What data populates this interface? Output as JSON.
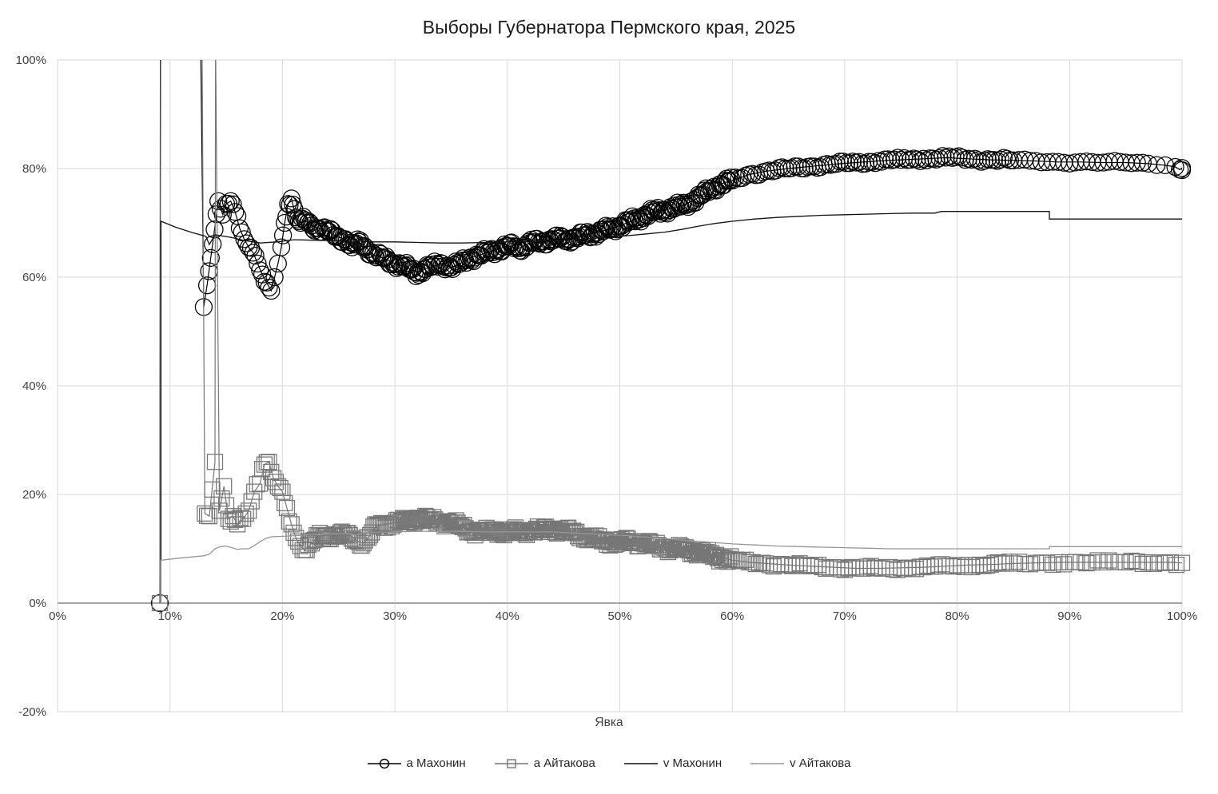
{
  "chart": {
    "title": "Выборы Губернатора Пермского края, 2025",
    "x_axis_title": "Явка"
  },
  "colors": {
    "background": "#ffffff",
    "grid": "#d9d9d9",
    "zero_axis": "#a6a6a6",
    "tick_text": "#404040",
    "title_text": "#1a1a1a",
    "series_makhonin": "#000000",
    "series_aytakova": "#767676",
    "line_v_makhonin": "#111111",
    "line_v_aytakova": "#969696"
  },
  "chart_data": {
    "type": "line",
    "title": "Выборы Губернатора Пермского края, 2025",
    "xlabel": "Явка",
    "ylabel": "",
    "units": "percent",
    "xlim": [
      0,
      100
    ],
    "ylim": [
      -20,
      100
    ],
    "grid": true,
    "legend_position": "bottom",
    "x_tick_values": [
      0,
      10,
      20,
      30,
      40,
      50,
      60,
      70,
      80,
      90,
      100
    ],
    "x_tick_labels": [
      "0%",
      "10%",
      "20%",
      "30%",
      "40%",
      "50%",
      "60%",
      "70%",
      "80%",
      "90%",
      "100%"
    ],
    "y_tick_values": [
      -20,
      0,
      20,
      40,
      60,
      80,
      100
    ],
    "y_tick_labels": [
      "-20%",
      "0%",
      "20%",
      "40%",
      "60%",
      "80%",
      "100%"
    ],
    "series": [
      {
        "name": "а Махонин",
        "marker": "circle",
        "color": "#000000",
        "marker_size": 21,
        "points": [
          [
            9.1,
            0
          ],
          [
            9.15,
            112
          ],
          [
            12.7,
            108
          ],
          [
            13.0,
            54.5
          ],
          [
            13.3,
            58.5
          ],
          [
            14.3,
            74
          ],
          [
            14.7,
            71.5
          ],
          [
            15.0,
            73.5
          ],
          [
            15.4,
            74
          ],
          [
            15.8,
            72
          ],
          [
            16.2,
            69
          ],
          [
            16.6,
            67
          ],
          [
            17.0,
            65.5
          ],
          [
            17.4,
            64.5
          ],
          [
            17.8,
            62.5
          ],
          [
            18.2,
            60.5
          ],
          [
            18.6,
            59
          ],
          [
            19.0,
            57.5
          ],
          [
            19.3,
            60
          ],
          [
            19.6,
            62.5
          ],
          [
            19.9,
            65.5
          ],
          [
            20.2,
            70
          ],
          [
            20.5,
            73.5
          ],
          [
            20.8,
            74.5
          ],
          [
            21.2,
            71
          ],
          [
            21.6,
            70
          ],
          [
            22.0,
            70.5
          ],
          [
            22.6,
            69.5
          ],
          [
            23.2,
            69
          ],
          [
            24.0,
            68.5
          ],
          [
            24.8,
            67.5
          ],
          [
            25.6,
            67
          ],
          [
            26.2,
            65.5
          ],
          [
            26.8,
            66.5
          ],
          [
            27.4,
            65.5
          ],
          [
            28.2,
            64
          ],
          [
            29.0,
            63.5
          ],
          [
            30.0,
            62.5
          ],
          [
            30.8,
            62
          ],
          [
            31.4,
            61.5
          ],
          [
            32.0,
            60.8
          ],
          [
            32.6,
            61.5
          ],
          [
            33.4,
            62
          ],
          [
            34.2,
            62.5
          ],
          [
            35.0,
            61.8
          ],
          [
            35.8,
            62.5
          ],
          [
            36.6,
            63.5
          ],
          [
            37.4,
            64
          ],
          [
            38.2,
            64.5
          ],
          [
            39.0,
            65
          ],
          [
            40.0,
            65.8
          ],
          [
            41.0,
            65.3
          ],
          [
            42.0,
            66.3
          ],
          [
            43.0,
            66.5
          ],
          [
            44.0,
            67
          ],
          [
            45.0,
            67
          ],
          [
            46.0,
            67.2
          ],
          [
            47.0,
            67.8
          ],
          [
            48.0,
            68.2
          ],
          [
            49.0,
            68.8
          ],
          [
            50.0,
            69.5
          ],
          [
            51.0,
            70.3
          ],
          [
            52.0,
            71.2
          ],
          [
            53.0,
            72
          ],
          [
            54.0,
            72.4
          ],
          [
            55.0,
            72.8
          ],
          [
            55.8,
            73.4
          ],
          [
            56.6,
            74.2
          ],
          [
            57.4,
            75.2
          ],
          [
            58.2,
            76.3
          ],
          [
            59.0,
            77.2
          ],
          [
            60.0,
            77.8
          ],
          [
            61.5,
            78.9
          ],
          [
            63.0,
            79.5
          ],
          [
            65.0,
            80.0
          ],
          [
            67.0,
            80.4
          ],
          [
            69.0,
            80.8
          ],
          [
            71.0,
            81.1
          ],
          [
            73.0,
            81.4
          ],
          [
            75.0,
            81.6
          ],
          [
            77.0,
            81.8
          ],
          [
            79.0,
            82.0
          ],
          [
            81.0,
            81.8
          ],
          [
            83.0,
            81.6
          ],
          [
            85.0,
            81.5
          ],
          [
            87.0,
            81.4
          ],
          [
            89.0,
            81.2
          ],
          [
            91.0,
            81.2
          ],
          [
            93.0,
            81.1
          ],
          [
            95.0,
            81.1
          ],
          [
            97.0,
            80.9
          ],
          [
            98.5,
            80.6
          ],
          [
            99.4,
            80.3
          ],
          [
            99.8,
            79.8
          ],
          [
            100,
            80.1
          ],
          [
            100,
            79.7
          ]
        ]
      },
      {
        "name": "а Айтакова",
        "marker": "square",
        "color": "#767676",
        "marker_size": 19,
        "points": [
          [
            9.1,
            0
          ],
          [
            9.18,
            106
          ],
          [
            12.85,
            104
          ],
          [
            13.1,
            16.5
          ],
          [
            13.5,
            16
          ],
          [
            14.0,
            26
          ],
          [
            14.05,
            104
          ],
          [
            14.4,
            17
          ],
          [
            14.8,
            21.5
          ],
          [
            15.2,
            15.5
          ],
          [
            15.6,
            16
          ],
          [
            16.0,
            14.5
          ],
          [
            16.5,
            15.5
          ],
          [
            17.0,
            17
          ],
          [
            17.5,
            20.5
          ],
          [
            18.0,
            22
          ],
          [
            18.4,
            25.5
          ],
          [
            18.8,
            26
          ],
          [
            19.2,
            23
          ],
          [
            19.6,
            21.5
          ],
          [
            20.0,
            20.5
          ],
          [
            20.4,
            17.5
          ],
          [
            20.8,
            14.5
          ],
          [
            21.2,
            12
          ],
          [
            21.6,
            10.5
          ],
          [
            22.0,
            9.8
          ],
          [
            22.6,
            11
          ],
          [
            23.2,
            12.3
          ],
          [
            24.0,
            12.5
          ],
          [
            25.0,
            12.4
          ],
          [
            26.0,
            12.5
          ],
          [
            26.6,
            11.5
          ],
          [
            27.2,
            11
          ],
          [
            27.8,
            12.5
          ],
          [
            28.4,
            14.3
          ],
          [
            29.2,
            14.5
          ],
          [
            30.0,
            14.8
          ],
          [
            31.0,
            15
          ],
          [
            32.0,
            15.7
          ],
          [
            33.0,
            15.3
          ],
          [
            34.0,
            15
          ],
          [
            35.0,
            14.8
          ],
          [
            36.0,
            14
          ],
          [
            37.0,
            13.2
          ],
          [
            38.0,
            13
          ],
          [
            39.0,
            13.4
          ],
          [
            40.0,
            12.9
          ],
          [
            41.0,
            13.3
          ],
          [
            42.0,
            13.3
          ],
          [
            43.0,
            13.4
          ],
          [
            44.0,
            13.7
          ],
          [
            45.0,
            13.3
          ],
          [
            46.0,
            12.9
          ],
          [
            47.0,
            12.2
          ],
          [
            48.0,
            11.7
          ],
          [
            49.0,
            11.3
          ],
          [
            50.0,
            11.2
          ],
          [
            51.0,
            11.4
          ],
          [
            52.0,
            11
          ],
          [
            53.0,
            10.6
          ],
          [
            54.0,
            10.2
          ],
          [
            55.0,
            10
          ],
          [
            56.0,
            9.8
          ],
          [
            57.0,
            9.4
          ],
          [
            58.0,
            8.9
          ],
          [
            59.0,
            8.4
          ],
          [
            60.0,
            7.9
          ],
          [
            61.5,
            7.5
          ],
          [
            63.0,
            7.3
          ],
          [
            65.0,
            7.0
          ],
          [
            67.0,
            6.8
          ],
          [
            69.0,
            6.6
          ],
          [
            71.0,
            6.4
          ],
          [
            73.0,
            6.4
          ],
          [
            75.0,
            6.5
          ],
          [
            77.0,
            6.6
          ],
          [
            79.0,
            6.8
          ],
          [
            81.0,
            7.0
          ],
          [
            83.0,
            7.1
          ],
          [
            85.0,
            7.3
          ],
          [
            87.0,
            7.4
          ],
          [
            89.0,
            7.5
          ],
          [
            91.0,
            7.5
          ],
          [
            93.0,
            7.5
          ],
          [
            95.0,
            7.5
          ],
          [
            97.0,
            7.5
          ],
          [
            99.0,
            7.5
          ],
          [
            100,
            7.4
          ]
        ]
      },
      {
        "name": "v Махонин",
        "marker": "none",
        "color": "#111111",
        "points": [
          [
            9.2,
            0
          ],
          [
            9.2,
            70.3
          ],
          [
            10.5,
            69.2
          ],
          [
            12.0,
            68.2
          ],
          [
            13.2,
            67.5
          ],
          [
            13.5,
            66.0
          ],
          [
            14.0,
            67.8
          ],
          [
            15.5,
            67.3
          ],
          [
            16.5,
            66.8
          ],
          [
            18.0,
            66.3
          ],
          [
            19.5,
            66.5
          ],
          [
            21.0,
            66.9
          ],
          [
            23.0,
            66.8
          ],
          [
            25.0,
            66.7
          ],
          [
            26.5,
            66.3
          ],
          [
            27.0,
            66.7
          ],
          [
            28.0,
            66.5
          ],
          [
            30.0,
            66.5
          ],
          [
            32.0,
            66.4
          ],
          [
            34.0,
            66.3
          ],
          [
            36.0,
            66.3
          ],
          [
            38.0,
            66.4
          ],
          [
            40.0,
            66.5
          ],
          [
            42.0,
            66.6
          ],
          [
            44.0,
            66.7
          ],
          [
            46.0,
            66.9
          ],
          [
            48.0,
            67.2
          ],
          [
            50.0,
            67.5
          ],
          [
            52.0,
            67.9
          ],
          [
            54.0,
            68.3
          ],
          [
            55.5,
            68.8
          ],
          [
            57.0,
            69.4
          ],
          [
            58.5,
            69.9
          ],
          [
            60.0,
            70.3
          ],
          [
            62.0,
            70.7
          ],
          [
            64.0,
            71.0
          ],
          [
            66.0,
            71.2
          ],
          [
            68.0,
            71.4
          ],
          [
            70.0,
            71.5
          ],
          [
            72.0,
            71.6
          ],
          [
            74.0,
            71.7
          ],
          [
            76.0,
            71.8
          ],
          [
            78.0,
            71.8
          ],
          [
            78.6,
            72.1
          ],
          [
            80.0,
            72.1
          ],
          [
            83.0,
            72.1
          ],
          [
            86.0,
            72.1
          ],
          [
            88.2,
            72.1
          ],
          [
            88.2,
            70.7
          ],
          [
            92.0,
            70.7
          ],
          [
            96.0,
            70.7
          ],
          [
            100,
            70.7
          ]
        ]
      },
      {
        "name": "v Айтакова",
        "marker": "none",
        "color": "#969696",
        "points": [
          [
            9.2,
            0
          ],
          [
            9.2,
            7.9
          ],
          [
            10.5,
            8.2
          ],
          [
            12.0,
            8.5
          ],
          [
            13.0,
            8.7
          ],
          [
            13.5,
            9.0
          ],
          [
            14.0,
            10.0
          ],
          [
            14.5,
            10.4
          ],
          [
            15.0,
            10.5
          ],
          [
            15.5,
            10.2
          ],
          [
            16.0,
            9.9
          ],
          [
            16.5,
            10.0
          ],
          [
            17.0,
            10.0
          ],
          [
            17.5,
            10.6
          ],
          [
            18.0,
            11.3
          ],
          [
            18.5,
            11.9
          ],
          [
            19.0,
            12.2
          ],
          [
            20.0,
            12.3
          ],
          [
            21.0,
            12.4
          ],
          [
            22.0,
            12.5
          ],
          [
            23.0,
            12.6
          ],
          [
            24.0,
            12.7
          ],
          [
            25.0,
            12.8
          ],
          [
            26.0,
            12.8
          ],
          [
            26.5,
            12.5
          ],
          [
            27.0,
            12.9
          ],
          [
            28.0,
            13.0
          ],
          [
            30.0,
            13.1
          ],
          [
            32.0,
            13.2
          ],
          [
            34.0,
            13.2
          ],
          [
            36.0,
            13.2
          ],
          [
            38.0,
            13.1
          ],
          [
            40.0,
            13.1
          ],
          [
            42.0,
            13.1
          ],
          [
            44.0,
            13.1
          ],
          [
            46.0,
            12.9
          ],
          [
            48.0,
            12.7
          ],
          [
            50.0,
            12.5
          ],
          [
            52.0,
            12.2
          ],
          [
            54.0,
            11.9
          ],
          [
            56.0,
            11.5
          ],
          [
            58.0,
            11.2
          ],
          [
            60.0,
            10.9
          ],
          [
            62.0,
            10.7
          ],
          [
            64.0,
            10.5
          ],
          [
            66.0,
            10.4
          ],
          [
            68.0,
            10.3
          ],
          [
            70.0,
            10.2
          ],
          [
            72.0,
            10.1
          ],
          [
            74.0,
            10.0
          ],
          [
            78.0,
            10.0
          ],
          [
            82.0,
            10.0
          ],
          [
            86.0,
            10.0
          ],
          [
            88.2,
            10.0
          ],
          [
            88.2,
            10.4
          ],
          [
            92.0,
            10.4
          ],
          [
            96.0,
            10.4
          ],
          [
            100,
            10.4
          ]
        ]
      }
    ]
  }
}
